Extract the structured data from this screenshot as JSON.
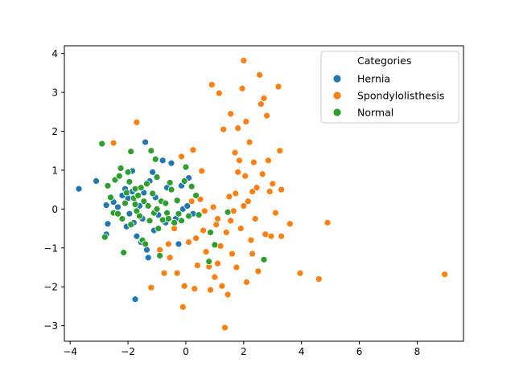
{
  "chart_data": {
    "type": "scatter",
    "title": "",
    "xlabel": "",
    "ylabel": "",
    "xlim": [
      -4.2,
      9.6
    ],
    "ylim": [
      -3.4,
      4.2
    ],
    "x_ticks": [
      -4,
      -2,
      0,
      2,
      4,
      6,
      8
    ],
    "y_ticks": [
      -3,
      -2,
      -1,
      0,
      1,
      2,
      3,
      4
    ],
    "grid": false,
    "legend": {
      "title": "Categories",
      "placement": "top-right"
    },
    "series": [
      {
        "name": "Hernia",
        "color": "#1f77b4",
        "points": [
          [
            -3.7,
            0.52
          ],
          [
            -3.1,
            0.72
          ],
          [
            -2.75,
            0.1
          ],
          [
            -2.7,
            -0.38
          ],
          [
            -2.75,
            -0.65
          ],
          [
            -2.5,
            0.18
          ],
          [
            -2.35,
            0.05
          ],
          [
            -2.2,
            0.35
          ],
          [
            -2.1,
            0.52
          ],
          [
            -2.0,
            0.28
          ],
          [
            -1.95,
            -0.12
          ],
          [
            -1.85,
            0.45
          ],
          [
            -1.85,
            0.98
          ],
          [
            -1.8,
            -0.35
          ],
          [
            -1.7,
            -0.7
          ],
          [
            -1.75,
            -2.32
          ],
          [
            -1.6,
            0.08
          ],
          [
            -1.5,
            -0.25
          ],
          [
            -1.45,
            0.42
          ],
          [
            -1.4,
            1.72
          ],
          [
            -1.35,
            -1.05
          ],
          [
            -1.3,
            -1.25
          ],
          [
            -1.25,
            0.72
          ],
          [
            -1.15,
            0.95
          ],
          [
            -1.1,
            -0.55
          ],
          [
            -1.05,
            0.3
          ],
          [
            -0.95,
            -0.15
          ],
          [
            -0.8,
            1.25
          ],
          [
            -0.65,
            0.55
          ],
          [
            -0.5,
            1.18
          ],
          [
            -0.35,
            -0.25
          ],
          [
            -0.25,
            -0.9
          ],
          [
            -0.15,
            0.6
          ],
          [
            -0.1,
            0.0
          ],
          [
            0.05,
            0.08
          ],
          [
            0.1,
            0.8
          ],
          [
            0.25,
            -0.12
          ],
          [
            -2.05,
            -0.45
          ],
          [
            -1.55,
            -0.85
          ],
          [
            -0.7,
            -0.35
          ]
        ]
      },
      {
        "name": "Spondylolisthesis",
        "color": "#ff7f0e",
        "points": [
          [
            -2.5,
            1.7
          ],
          [
            -1.7,
            2.23
          ],
          [
            -1.2,
            -2.02
          ],
          [
            -0.9,
            -1.05
          ],
          [
            -0.75,
            -1.65
          ],
          [
            -0.55,
            -1.25
          ],
          [
            -0.4,
            -0.5
          ],
          [
            -0.3,
            -1.65
          ],
          [
            -0.15,
            1.35
          ],
          [
            -0.1,
            -2.52
          ],
          [
            -0.05,
            -1.98
          ],
          [
            0.1,
            -0.85
          ],
          [
            0.2,
            0.2
          ],
          [
            0.25,
            1.52
          ],
          [
            0.3,
            -2.05
          ],
          [
            0.4,
            -1.45
          ],
          [
            0.5,
            0.25
          ],
          [
            0.55,
            0.98
          ],
          [
            0.6,
            -0.55
          ],
          [
            0.7,
            -1.1
          ],
          [
            0.8,
            -1.48
          ],
          [
            0.85,
            -2.08
          ],
          [
            0.9,
            3.2
          ],
          [
            0.95,
            0.05
          ],
          [
            1.0,
            -1.75
          ],
          [
            1.05,
            -0.4
          ],
          [
            1.1,
            -0.25
          ],
          [
            1.15,
            2.98
          ],
          [
            1.2,
            -0.95
          ],
          [
            1.25,
            -1.98
          ],
          [
            1.3,
            2.05
          ],
          [
            1.35,
            -3.05
          ],
          [
            1.4,
            -0.6
          ],
          [
            1.45,
            -2.2
          ],
          [
            1.5,
            0.32
          ],
          [
            1.55,
            2.45
          ],
          [
            1.6,
            -1.15
          ],
          [
            1.65,
            -0.05
          ],
          [
            1.7,
            1.45
          ],
          [
            1.72,
            0.4
          ],
          [
            1.75,
            -1.5
          ],
          [
            1.8,
            2.08
          ],
          [
            1.85,
            1.25
          ],
          [
            1.9,
            -0.5
          ],
          [
            1.95,
            3.1
          ],
          [
            2.0,
            3.82
          ],
          [
            2.05,
            0.85
          ],
          [
            2.08,
            2.25
          ],
          [
            2.1,
            -1.88
          ],
          [
            2.15,
            0.2
          ],
          [
            2.2,
            1.72
          ],
          [
            2.25,
            -0.8
          ],
          [
            2.3,
            0.45
          ],
          [
            2.35,
            1.2
          ],
          [
            2.4,
            -0.25
          ],
          [
            2.45,
            0.55
          ],
          [
            2.5,
            -1.6
          ],
          [
            2.55,
            3.45
          ],
          [
            2.6,
            2.7
          ],
          [
            2.65,
            0.9
          ],
          [
            2.7,
            2.85
          ],
          [
            2.75,
            -0.65
          ],
          [
            2.8,
            2.4
          ],
          [
            2.85,
            1.25
          ],
          [
            2.9,
            0.45
          ],
          [
            2.95,
            -0.7
          ],
          [
            3.0,
            0.65
          ],
          [
            3.1,
            -0.1
          ],
          [
            3.2,
            3.15
          ],
          [
            3.25,
            1.5
          ],
          [
            3.3,
            0.5
          ],
          [
            3.3,
            -0.7
          ],
          [
            3.6,
            -0.38
          ],
          [
            3.95,
            -1.65
          ],
          [
            4.6,
            -1.8
          ],
          [
            4.9,
            -0.35
          ],
          [
            8.95,
            -1.68
          ],
          [
            2.0,
            0.08
          ],
          [
            1.55,
            -0.3
          ],
          [
            2.3,
            -1.15
          ],
          [
            0.65,
            -0.05
          ],
          [
            1.1,
            -1.4
          ],
          [
            0.35,
            -0.75
          ],
          [
            -0.6,
            -0.9
          ],
          [
            1.8,
            0.95
          ]
        ]
      },
      {
        "name": "Normal",
        "color": "#2ca02c",
        "points": [
          [
            -2.9,
            1.68
          ],
          [
            -2.8,
            -0.72
          ],
          [
            -2.7,
            0.6
          ],
          [
            -2.6,
            0.3
          ],
          [
            -2.5,
            -0.1
          ],
          [
            -2.45,
            0.75
          ],
          [
            -2.3,
            0.85
          ],
          [
            -2.25,
            1.05
          ],
          [
            -2.2,
            -0.25
          ],
          [
            -2.15,
            -1.12
          ],
          [
            -2.1,
            0.15
          ],
          [
            -2.05,
            0.42
          ],
          [
            -2.0,
            0.95
          ],
          [
            -1.95,
            0.7
          ],
          [
            -1.9,
            -0.4
          ],
          [
            -1.9,
            1.48
          ],
          [
            -1.8,
            0.28
          ],
          [
            -1.75,
            0.52
          ],
          [
            -1.7,
            -0.05
          ],
          [
            -1.65,
            0.35
          ],
          [
            -1.6,
            -0.18
          ],
          [
            -1.55,
            0.55
          ],
          [
            -1.5,
            -0.8
          ],
          [
            -1.45,
            0.2
          ],
          [
            -1.4,
            -0.9
          ],
          [
            -1.35,
            0.65
          ],
          [
            -1.3,
            0.08
          ],
          [
            -1.25,
            -0.3
          ],
          [
            -1.2,
            1.5
          ],
          [
            -1.15,
            0.4
          ],
          [
            -1.1,
            -0.1
          ],
          [
            -1.05,
            1.28
          ],
          [
            -1.0,
            0.82
          ],
          [
            -0.95,
            -0.5
          ],
          [
            -0.9,
            -1.2
          ],
          [
            -0.85,
            0.2
          ],
          [
            -0.8,
            -0.28
          ],
          [
            -0.7,
            0.15
          ],
          [
            -0.65,
            -0.1
          ],
          [
            -0.55,
            0.68
          ],
          [
            -0.5,
            0.5
          ],
          [
            -0.4,
            -0.35
          ],
          [
            -0.3,
            0.22
          ],
          [
            -0.25,
            -0.12
          ],
          [
            -0.15,
            -0.3
          ],
          [
            -0.05,
            0.72
          ],
          [
            0.0,
            1.08
          ],
          [
            0.1,
            -0.18
          ],
          [
            0.2,
            0.58
          ],
          [
            0.35,
            0.35
          ],
          [
            0.45,
            -0.15
          ],
          [
            0.8,
            -1.35
          ],
          [
            0.85,
            -0.6
          ],
          [
            1.0,
            -0.92
          ],
          [
            1.45,
            -0.08
          ],
          [
            2.7,
            -1.3
          ],
          [
            -2.35,
            -0.12
          ],
          [
            -1.0,
            0.0
          ],
          [
            -0.6,
            -0.25
          ],
          [
            -1.75,
            0.12
          ]
        ]
      }
    ]
  }
}
